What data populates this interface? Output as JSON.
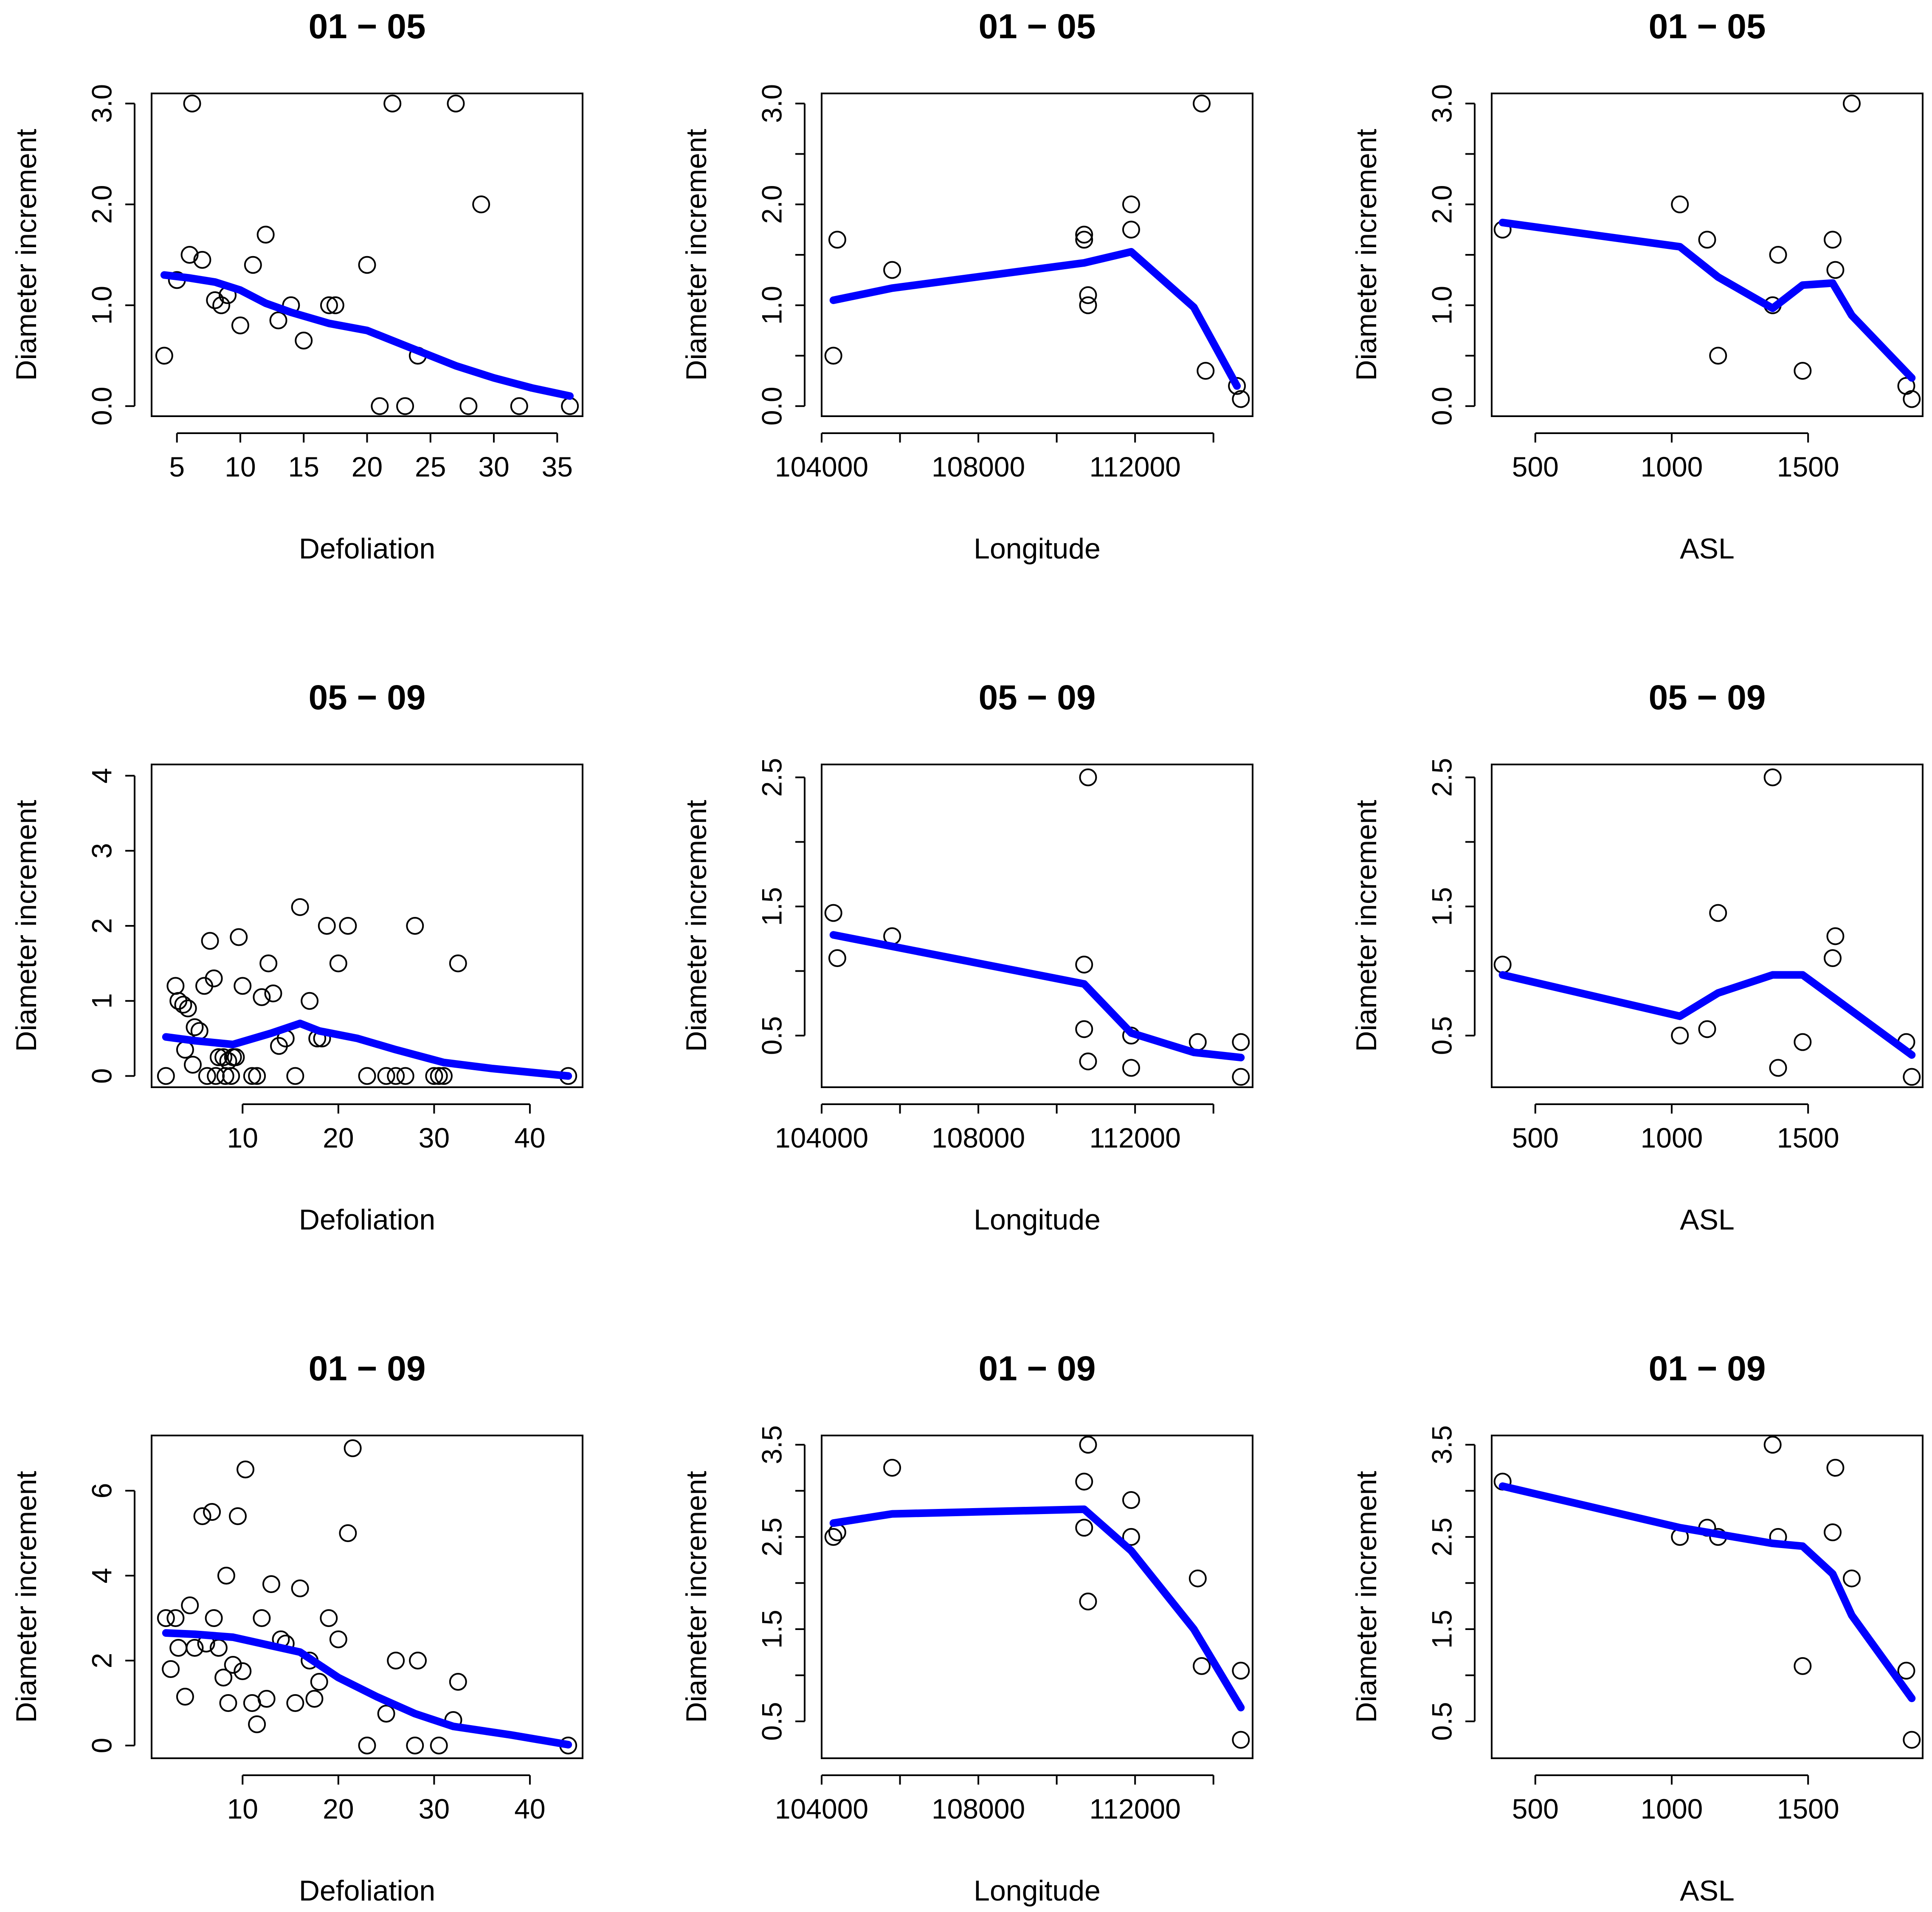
{
  "colors": {
    "point": "#000000",
    "smooth_line": "#0000ff",
    "background": "#ffffff"
  },
  "chart_data": [
    {
      "type": "scatter",
      "title": "01 − 05",
      "xlabel": "Defoliation",
      "ylabel": "Diameter increment",
      "xlim": [
        3,
        37
      ],
      "ylim": [
        -0.1,
        3.1
      ],
      "xticks": [
        5,
        10,
        15,
        20,
        25,
        30,
        35
      ],
      "yticks": [
        0.0,
        1.0,
        2.0,
        3.0
      ],
      "ytick_labels": [
        "0.0",
        "1.0",
        "2.0",
        "3.0"
      ],
      "points": [
        [
          4,
          0.5
        ],
        [
          5,
          1.25
        ],
        [
          6,
          1.5
        ],
        [
          6.2,
          3.0
        ],
        [
          7,
          1.45
        ],
        [
          8,
          1.05
        ],
        [
          8.5,
          1.0
        ],
        [
          9,
          1.1
        ],
        [
          10,
          0.8
        ],
        [
          11,
          1.4
        ],
        [
          12,
          1.7
        ],
        [
          13,
          0.85
        ],
        [
          14,
          1.0
        ],
        [
          15,
          0.65
        ],
        [
          17,
          1.0
        ],
        [
          17.5,
          1.0
        ],
        [
          20,
          1.4
        ],
        [
          21,
          0.0
        ],
        [
          22,
          3.0
        ],
        [
          23,
          0.0
        ],
        [
          24,
          0.5
        ],
        [
          27,
          3.0
        ],
        [
          28,
          0.0
        ],
        [
          29,
          2.0
        ],
        [
          32,
          0.0
        ],
        [
          36,
          0.0
        ]
      ],
      "smooth": [
        [
          4,
          1.3
        ],
        [
          6,
          1.27
        ],
        [
          8,
          1.23
        ],
        [
          10,
          1.15
        ],
        [
          12,
          1.02
        ],
        [
          14,
          0.93
        ],
        [
          17,
          0.82
        ],
        [
          20,
          0.75
        ],
        [
          23,
          0.6
        ],
        [
          27,
          0.4
        ],
        [
          30,
          0.28
        ],
        [
          33,
          0.18
        ],
        [
          36,
          0.1
        ]
      ]
    },
    {
      "type": "scatter",
      "title": "01 − 05",
      "xlabel": "Longitude",
      "ylabel": "Diameter increment",
      "xlim": [
        104000,
        115000
      ],
      "ylim": [
        -0.1,
        3.1
      ],
      "xticks": [
        104000,
        106000,
        108000,
        110000,
        112000,
        114000
      ],
      "xtick_labels": [
        "104000",
        "",
        "108000",
        "",
        "112000",
        ""
      ],
      "yticks": [
        0.0,
        0.5,
        1.0,
        1.5,
        2.0,
        2.5,
        3.0
      ],
      "ytick_labels": [
        "0.0",
        "",
        "1.0",
        "",
        "2.0",
        "",
        "3.0"
      ],
      "points": [
        [
          104300,
          0.5
        ],
        [
          104400,
          1.65
        ],
        [
          105800,
          1.35
        ],
        [
          110700,
          1.7
        ],
        [
          110700,
          1.65
        ],
        [
          110800,
          1.1
        ],
        [
          110800,
          1.0
        ],
        [
          111900,
          2.0
        ],
        [
          111900,
          1.75
        ],
        [
          113700,
          3.0
        ],
        [
          113800,
          0.35
        ],
        [
          114600,
          0.2
        ],
        [
          114700,
          0.07
        ]
      ],
      "smooth": [
        [
          104300,
          1.05
        ],
        [
          105800,
          1.17
        ],
        [
          110700,
          1.42
        ],
        [
          111900,
          1.53
        ],
        [
          113500,
          0.98
        ],
        [
          114600,
          0.2
        ]
      ]
    },
    {
      "type": "scatter",
      "title": "01 − 05",
      "xlabel": "ASL",
      "ylabel": "Diameter increment",
      "xlim": [
        340,
        1920
      ],
      "ylim": [
        -0.1,
        3.1
      ],
      "xticks": [
        500,
        1000,
        1500
      ],
      "yticks": [
        0.0,
        0.5,
        1.0,
        1.5,
        2.0,
        2.5,
        3.0
      ],
      "ytick_labels": [
        "0.0",
        "",
        "1.0",
        "",
        "2.0",
        "",
        "3.0"
      ],
      "points": [
        [
          380,
          1.75
        ],
        [
          1030,
          2.0
        ],
        [
          1130,
          1.65
        ],
        [
          1170,
          0.5
        ],
        [
          1370,
          1.0
        ],
        [
          1390,
          1.5
        ],
        [
          1480,
          0.35
        ],
        [
          1590,
          1.65
        ],
        [
          1600,
          1.35
        ],
        [
          1660,
          3.0
        ],
        [
          1860,
          0.2
        ],
        [
          1880,
          0.07
        ]
      ],
      "smooth": [
        [
          380,
          1.82
        ],
        [
          1030,
          1.58
        ],
        [
          1170,
          1.28
        ],
        [
          1370,
          0.97
        ],
        [
          1480,
          1.2
        ],
        [
          1590,
          1.22
        ],
        [
          1660,
          0.9
        ],
        [
          1880,
          0.28
        ]
      ]
    },
    {
      "type": "scatter",
      "title": "05 − 09",
      "xlabel": "Defoliation",
      "ylabel": "Diameter increment",
      "xlim": [
        0.5,
        45.5
      ],
      "ylim": [
        -0.15,
        4.15
      ],
      "xticks": [
        10,
        20,
        30,
        40
      ],
      "yticks": [
        0,
        1,
        2,
        3,
        4
      ],
      "ytick_labels": [
        "0",
        "1",
        "2",
        "3",
        "4"
      ],
      "points": [
        [
          2,
          0
        ],
        [
          3,
          1.2
        ],
        [
          3.3,
          1.0
        ],
        [
          3.8,
          0.95
        ],
        [
          4,
          0.35
        ],
        [
          4.3,
          0.9
        ],
        [
          4.8,
          0.15
        ],
        [
          5,
          0.65
        ],
        [
          5.5,
          0.6
        ],
        [
          6,
          1.2
        ],
        [
          6.3,
          0
        ],
        [
          6.6,
          1.8
        ],
        [
          7,
          1.3
        ],
        [
          7.2,
          0
        ],
        [
          7.5,
          0.25
        ],
        [
          8,
          0.25
        ],
        [
          8.2,
          0
        ],
        [
          8.5,
          0.2
        ],
        [
          8.8,
          0
        ],
        [
          9,
          0.25
        ],
        [
          9.3,
          0.25
        ],
        [
          9.6,
          1.85
        ],
        [
          10,
          1.2
        ],
        [
          11,
          0
        ],
        [
          11.5,
          0
        ],
        [
          12,
          1.05
        ],
        [
          12.7,
          1.5
        ],
        [
          13.2,
          1.1
        ],
        [
          13.8,
          0.4
        ],
        [
          14.5,
          0.5
        ],
        [
          15.5,
          0
        ],
        [
          16,
          2.25
        ],
        [
          17,
          1.0
        ],
        [
          17.8,
          0.5
        ],
        [
          18.3,
          0.5
        ],
        [
          18.8,
          2.0
        ],
        [
          20,
          1.5
        ],
        [
          21,
          2.0
        ],
        [
          23,
          0
        ],
        [
          25,
          0
        ],
        [
          26,
          0
        ],
        [
          27,
          0
        ],
        [
          28,
          2.0
        ],
        [
          30,
          0
        ],
        [
          30.5,
          0
        ],
        [
          31,
          0
        ],
        [
          32.5,
          1.5
        ],
        [
          44,
          0
        ]
      ],
      "smooth": [
        [
          2,
          0.52
        ],
        [
          5,
          0.47
        ],
        [
          9,
          0.42
        ],
        [
          13,
          0.57
        ],
        [
          16,
          0.7
        ],
        [
          18,
          0.6
        ],
        [
          22,
          0.5
        ],
        [
          26,
          0.35
        ],
        [
          31,
          0.18
        ],
        [
          36,
          0.1
        ],
        [
          44,
          0.0
        ]
      ]
    },
    {
      "type": "scatter",
      "title": "05 − 09",
      "xlabel": "Longitude",
      "ylabel": "Diameter increment",
      "xlim": [
        104000,
        115000
      ],
      "ylim": [
        0.1,
        2.6
      ],
      "xticks": [
        104000,
        106000,
        108000,
        110000,
        112000,
        114000
      ],
      "xtick_labels": [
        "104000",
        "",
        "108000",
        "",
        "112000",
        ""
      ],
      "yticks": [
        0.5,
        1.0,
        1.5,
        2.0,
        2.5
      ],
      "ytick_labels": [
        "0.5",
        "",
        "1.5",
        "",
        "2.5"
      ],
      "points": [
        [
          104300,
          1.45
        ],
        [
          104400,
          1.1
        ],
        [
          105800,
          1.27
        ],
        [
          110700,
          1.05
        ],
        [
          110700,
          0.55
        ],
        [
          110800,
          0.3
        ],
        [
          110800,
          2.5
        ],
        [
          111900,
          0.5
        ],
        [
          111900,
          0.25
        ],
        [
          113600,
          0.45
        ],
        [
          114700,
          0.45
        ],
        [
          114700,
          0.18
        ]
      ],
      "smooth": [
        [
          104300,
          1.28
        ],
        [
          110700,
          0.9
        ],
        [
          111900,
          0.52
        ],
        [
          113500,
          0.37
        ],
        [
          114700,
          0.33
        ]
      ]
    },
    {
      "type": "scatter",
      "title": "05 − 09",
      "xlabel": "ASL",
      "ylabel": "Diameter increment",
      "xlim": [
        340,
        1920
      ],
      "ylim": [
        0.1,
        2.6
      ],
      "xticks": [
        500,
        1000,
        1500
      ],
      "yticks": [
        0.5,
        1.0,
        1.5,
        2.0,
        2.5
      ],
      "ytick_labels": [
        "0.5",
        "",
        "1.5",
        "",
        "2.5"
      ],
      "points": [
        [
          380,
          1.05
        ],
        [
          1030,
          0.5
        ],
        [
          1130,
          0.55
        ],
        [
          1170,
          1.45
        ],
        [
          1370,
          2.5
        ],
        [
          1390,
          0.25
        ],
        [
          1480,
          0.45
        ],
        [
          1590,
          1.1
        ],
        [
          1600,
          1.27
        ],
        [
          1860,
          0.45
        ],
        [
          1880,
          0.18
        ]
      ],
      "smooth": [
        [
          380,
          0.97
        ],
        [
          1030,
          0.65
        ],
        [
          1170,
          0.83
        ],
        [
          1370,
          0.97
        ],
        [
          1480,
          0.97
        ],
        [
          1590,
          0.8
        ],
        [
          1880,
          0.35
        ]
      ]
    },
    {
      "type": "scatter",
      "title": "01 − 09",
      "xlabel": "Defoliation",
      "ylabel": "Diameter increment",
      "xlim": [
        0.5,
        45.5
      ],
      "ylim": [
        -0.3,
        7.3
      ],
      "xticks": [
        10,
        20,
        30,
        40
      ],
      "yticks": [
        0,
        2,
        4,
        6
      ],
      "ytick_labels": [
        "0",
        "2",
        "4",
        "6"
      ],
      "points": [
        [
          2,
          3.0
        ],
        [
          2.5,
          1.8
        ],
        [
          3,
          3.0
        ],
        [
          3.3,
          2.3
        ],
        [
          4,
          1.15
        ],
        [
          4.5,
          3.3
        ],
        [
          5,
          2.3
        ],
        [
          5.8,
          5.4
        ],
        [
          6.2,
          2.4
        ],
        [
          6.8,
          5.5
        ],
        [
          7,
          3.0
        ],
        [
          7.5,
          2.3
        ],
        [
          8,
          1.6
        ],
        [
          8.3,
          4.0
        ],
        [
          8.5,
          1.0
        ],
        [
          9,
          1.9
        ],
        [
          9.5,
          5.4
        ],
        [
          10,
          1.75
        ],
        [
          10.3,
          6.5
        ],
        [
          11,
          1.0
        ],
        [
          11.5,
          0.5
        ],
        [
          12,
          3.0
        ],
        [
          12.5,
          1.1
        ],
        [
          13,
          3.8
        ],
        [
          14,
          2.5
        ],
        [
          14.5,
          2.4
        ],
        [
          15.5,
          1.0
        ],
        [
          16,
          3.7
        ],
        [
          17,
          2.0
        ],
        [
          17.5,
          1.1
        ],
        [
          18,
          1.5
        ],
        [
          19,
          3.0
        ],
        [
          20,
          2.5
        ],
        [
          21,
          5.0
        ],
        [
          21.5,
          7.0
        ],
        [
          23,
          0.0
        ],
        [
          25,
          0.75
        ],
        [
          26,
          2.0
        ],
        [
          28,
          0.0
        ],
        [
          28.3,
          2.0
        ],
        [
          30.5,
          0.0
        ],
        [
          32,
          0.6
        ],
        [
          32.5,
          1.5
        ],
        [
          44,
          0.0
        ]
      ],
      "smooth": [
        [
          2,
          2.65
        ],
        [
          5,
          2.62
        ],
        [
          9,
          2.55
        ],
        [
          12,
          2.4
        ],
        [
          16,
          2.2
        ],
        [
          20,
          1.6
        ],
        [
          24,
          1.15
        ],
        [
          28,
          0.75
        ],
        [
          32,
          0.45
        ],
        [
          38,
          0.25
        ],
        [
          44,
          0.02
        ]
      ]
    },
    {
      "type": "scatter",
      "title": "01 − 09",
      "xlabel": "Longitude",
      "ylabel": "Diameter increment",
      "xlim": [
        104000,
        115000
      ],
      "ylim": [
        0.1,
        3.6
      ],
      "xticks": [
        104000,
        106000,
        108000,
        110000,
        112000,
        114000
      ],
      "xtick_labels": [
        "104000",
        "",
        "108000",
        "",
        "112000",
        ""
      ],
      "yticks": [
        0.5,
        1.0,
        1.5,
        2.0,
        2.5,
        3.0,
        3.5
      ],
      "ytick_labels": [
        "0.5",
        "",
        "1.5",
        "",
        "2.5",
        "",
        "3.5"
      ],
      "points": [
        [
          104300,
          2.5
        ],
        [
          104400,
          2.55
        ],
        [
          105800,
          3.25
        ],
        [
          110700,
          3.1
        ],
        [
          110700,
          2.6
        ],
        [
          110800,
          1.8
        ],
        [
          110800,
          3.5
        ],
        [
          111900,
          2.9
        ],
        [
          111900,
          2.5
        ],
        [
          113600,
          2.05
        ],
        [
          113700,
          1.1
        ],
        [
          114700,
          1.05
        ],
        [
          114700,
          0.3
        ]
      ],
      "smooth": [
        [
          104300,
          2.65
        ],
        [
          105800,
          2.75
        ],
        [
          110700,
          2.8
        ],
        [
          111900,
          2.35
        ],
        [
          113500,
          1.5
        ],
        [
          114700,
          0.65
        ]
      ]
    },
    {
      "type": "scatter",
      "title": "01 − 09",
      "xlabel": "ASL",
      "ylabel": "Diameter increment",
      "xlim": [
        340,
        1920
      ],
      "ylim": [
        0.1,
        3.6
      ],
      "xticks": [
        500,
        1000,
        1500
      ],
      "yticks": [
        0.5,
        1.0,
        1.5,
        2.0,
        2.5,
        3.0,
        3.5
      ],
      "ytick_labels": [
        "0.5",
        "",
        "1.5",
        "",
        "2.5",
        "",
        "3.5"
      ],
      "points": [
        [
          380,
          3.1
        ],
        [
          1030,
          2.5
        ],
        [
          1130,
          2.6
        ],
        [
          1170,
          2.5
        ],
        [
          1370,
          3.5
        ],
        [
          1390,
          2.5
        ],
        [
          1480,
          1.1
        ],
        [
          1590,
          2.55
        ],
        [
          1600,
          3.25
        ],
        [
          1660,
          2.05
        ],
        [
          1860,
          1.05
        ],
        [
          1880,
          0.3
        ]
      ],
      "smooth": [
        [
          380,
          3.05
        ],
        [
          1030,
          2.6
        ],
        [
          1170,
          2.53
        ],
        [
          1370,
          2.43
        ],
        [
          1480,
          2.4
        ],
        [
          1590,
          2.1
        ],
        [
          1660,
          1.65
        ],
        [
          1880,
          0.75
        ]
      ]
    }
  ]
}
